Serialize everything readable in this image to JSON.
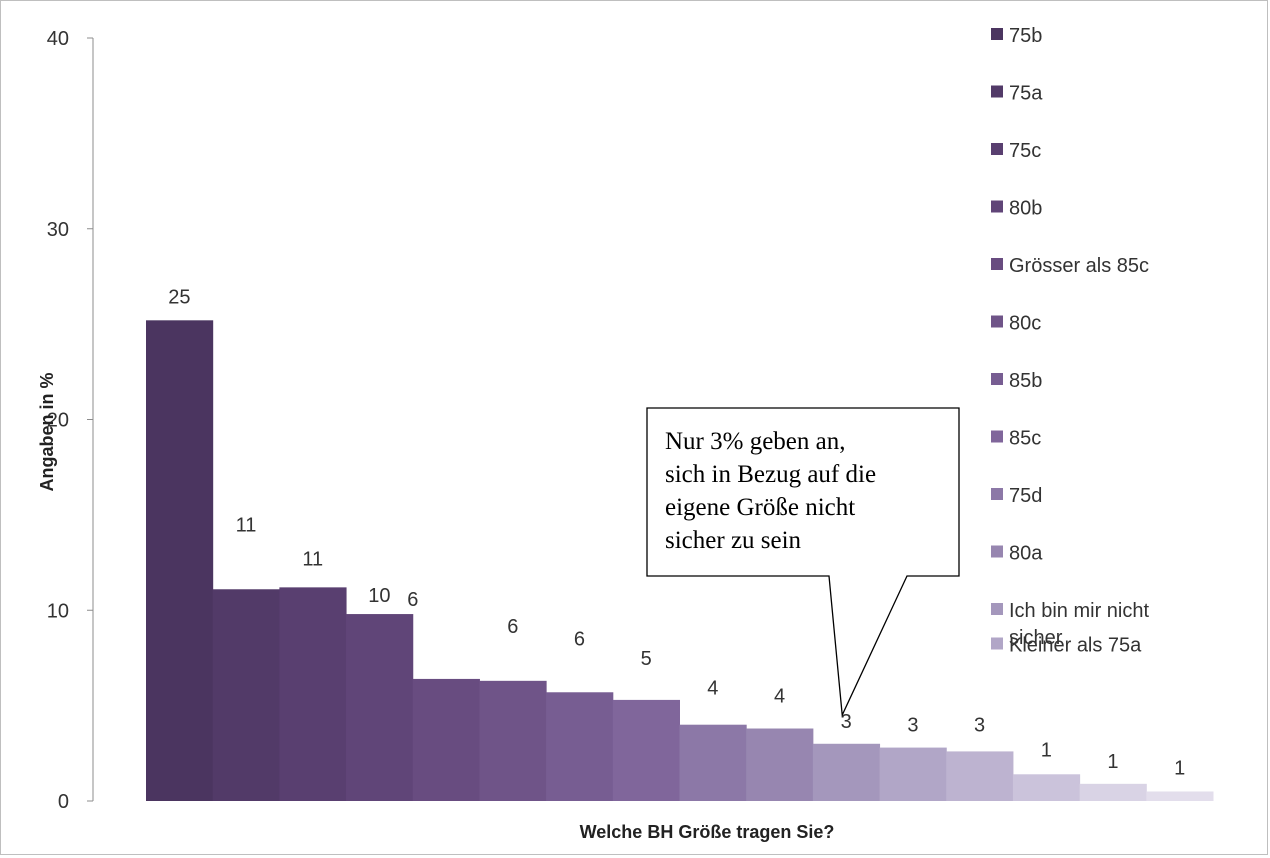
{
  "chart_data": {
    "type": "bar",
    "title": "",
    "xlabel": "Welche BH Größe tragen Sie?",
    "ylabel": "Angaben in %",
    "ylim": [
      0,
      40
    ],
    "yticks": [
      "0",
      "10",
      "20",
      "30",
      "40"
    ],
    "grid": false,
    "legend_position": "right",
    "series": [
      {
        "name": "75b",
        "value": 25.2,
        "label": "25",
        "color": "#4b3560"
      },
      {
        "name": "75a",
        "value": 11.1,
        "label": "11",
        "color": "#523a68"
      },
      {
        "name": "75c",
        "value": 11.2,
        "label": "11",
        "color": "#593f70"
      },
      {
        "name": "80b",
        "value": 9.8,
        "label": "10",
        "color": "#604578"
      },
      {
        "name": "Grösser als 85c",
        "value": 6.4,
        "label": "6",
        "color": "#684c80"
      },
      {
        "name": "80c",
        "value": 6.3,
        "label": "6",
        "color": "#6f5488"
      },
      {
        "name": "85b",
        "value": 5.7,
        "label": "6",
        "color": "#775d92"
      },
      {
        "name": "85c",
        "value": 5.3,
        "label": "5",
        "color": "#80669b"
      },
      {
        "name": "75d",
        "value": 4.0,
        "label": "4",
        "color": "#8c78a7"
      },
      {
        "name": "80a",
        "value": 3.8,
        "label": "4",
        "color": "#9786b0"
      },
      {
        "name": "Ich bin mir nicht sicher",
        "value": 3.0,
        "label": "3",
        "color": "#a497bc"
      },
      {
        "name": "Kleiner als 75a",
        "value": 2.8,
        "label": "3",
        "color": "#b1a6c7"
      },
      {
        "name": "",
        "value": 2.6,
        "label": "3",
        "color": "#bdb3d0"
      },
      {
        "name": "",
        "value": 1.4,
        "label": "1",
        "color": "#cbc3db"
      },
      {
        "name": "",
        "value": 0.9,
        "label": "1",
        "color": "#d9d3e5"
      },
      {
        "name": "",
        "value": 0.5,
        "label": "1",
        "color": "#e3deec"
      }
    ],
    "legend_lines": [
      [
        "75b"
      ],
      [
        "75a"
      ],
      [
        "75c"
      ],
      [
        "80b"
      ],
      [
        "Grösser als 85c"
      ],
      [
        "80c"
      ],
      [
        "85b"
      ],
      [
        "85c"
      ],
      [
        "75d"
      ],
      [
        "80a"
      ],
      [
        "Ich bin mir nicht",
        "sicher"
      ],
      [
        "Kleiner als 75a"
      ]
    ],
    "annotation": {
      "lines": [
        "Nur 3% geben an,",
        "sich in Bezug auf die",
        "eigene Größe nicht",
        "sicher zu sein"
      ],
      "target_index": 10
    }
  }
}
